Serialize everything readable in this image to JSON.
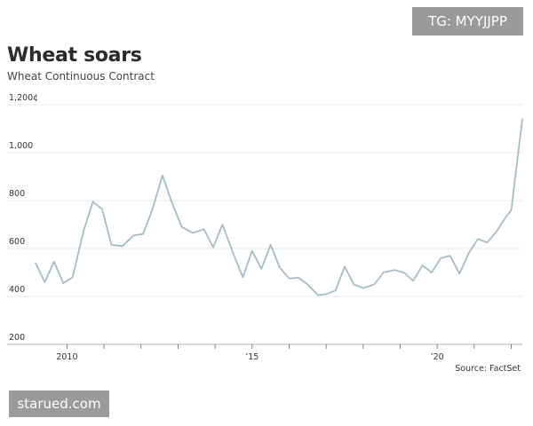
{
  "watermarks": {
    "top_right": "TG: MYYJJPP",
    "bottom_left": "starued.com"
  },
  "chart_data": {
    "type": "line",
    "title": "Wheat soars",
    "subtitle": "Wheat Continuous Contract",
    "source": "Source: FactSet",
    "ylim": [
      200,
      1200
    ],
    "xlim": [
      2009.15,
      2022.3
    ],
    "y_ticks": [
      {
        "value": 1200,
        "label": "1,200¢"
      },
      {
        "value": 1000,
        "label": "1,000"
      },
      {
        "value": 800,
        "label": "800"
      },
      {
        "value": 600,
        "label": "600"
      },
      {
        "value": 400,
        "label": "400"
      },
      {
        "value": 200,
        "label": "200"
      }
    ],
    "x_ticks": [
      {
        "value": 2010,
        "label": "2010"
      },
      {
        "value": 2015,
        "label": "’15"
      },
      {
        "value": 2020,
        "label": "’20"
      }
    ],
    "x_minor_ticks": [
      2010,
      2011,
      2012,
      2013,
      2014,
      2015,
      2016,
      2017,
      2018,
      2019,
      2020,
      2021,
      2022
    ],
    "grid": true,
    "line_color": "#a6bcc5",
    "series": [
      {
        "x": [
          2009.15,
          2009.4,
          2009.65,
          2009.9,
          2010.15,
          2010.45,
          2010.7,
          2010.95,
          2011.2,
          2011.5,
          2011.8,
          2012.05,
          2012.3,
          2012.58,
          2012.85,
          2013.1,
          2013.4,
          2013.7,
          2013.95,
          2014.2,
          2014.5,
          2014.75,
          2015.0,
          2015.25,
          2015.5,
          2015.75,
          2016.0,
          2016.25,
          2016.5,
          2016.78,
          2017.0,
          2017.25,
          2017.5,
          2017.75,
          2018.0,
          2018.3,
          2018.55,
          2018.85,
          2019.1,
          2019.35,
          2019.6,
          2019.85,
          2020.1,
          2020.35,
          2020.6,
          2020.85,
          2021.1,
          2021.35,
          2021.6,
          2021.85,
          2022.0,
          2022.3
        ],
        "y": [
          540,
          460,
          545,
          455,
          480,
          675,
          795,
          765,
          615,
          610,
          655,
          660,
          760,
          905,
          785,
          690,
          665,
          680,
          605,
          700,
          575,
          480,
          590,
          515,
          615,
          520,
          475,
          478,
          450,
          405,
          410,
          425,
          525,
          450,
          435,
          450,
          500,
          510,
          500,
          465,
          530,
          500,
          560,
          570,
          495,
          580,
          640,
          625,
          670,
          730,
          760,
          1140
        ]
      }
    ]
  }
}
